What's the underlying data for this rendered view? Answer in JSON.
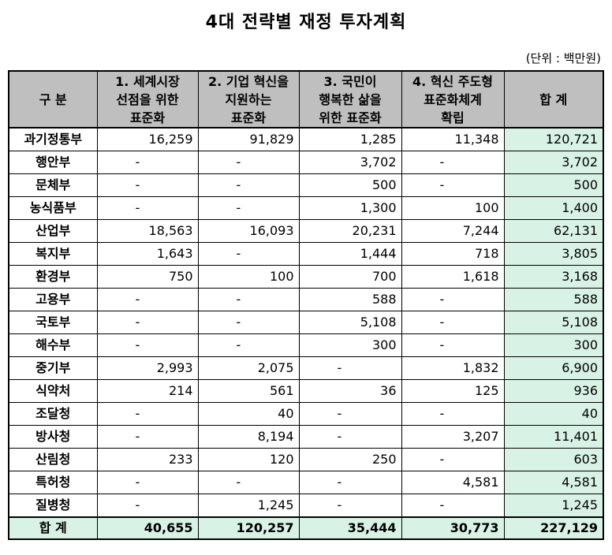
{
  "title": "4대 전략별 재정 투자계획",
  "unit": "(단위 : 백만원)",
  "headers": {
    "category": "구 분",
    "s1": [
      "1. 세계시장",
      "선점을 위한",
      "표준화"
    ],
    "s2": [
      "2. 기업 혁신을",
      "지원하는",
      "표준화"
    ],
    "s3": [
      "3. 국민이",
      "행복한 삶을",
      "위한 표준화"
    ],
    "s4": [
      "4. 혁신 주도형",
      "표준화체계",
      "확립"
    ],
    "total": "합 계"
  },
  "rows": [
    {
      "org": "과기정통부",
      "v": [
        "16,259",
        "91,829",
        "1,285",
        "11,348"
      ],
      "total": "120,721"
    },
    {
      "org": "행안부",
      "v": [
        "-",
        "-",
        "3,702",
        "-"
      ],
      "total": "3,702"
    },
    {
      "org": "문체부",
      "v": [
        "-",
        "-",
        "500",
        "-"
      ],
      "total": "500"
    },
    {
      "org": "농식품부",
      "v": [
        "-",
        "-",
        "1,300",
        "100"
      ],
      "total": "1,400"
    },
    {
      "org": "산업부",
      "v": [
        "18,563",
        "16,093",
        "20,231",
        "7,244"
      ],
      "total": "62,131"
    },
    {
      "org": "복지부",
      "v": [
        "1,643",
        "-",
        "1,444",
        "718"
      ],
      "total": "3,805"
    },
    {
      "org": "환경부",
      "v": [
        "750",
        "100",
        "700",
        "1,618"
      ],
      "total": "3,168"
    },
    {
      "org": "고용부",
      "v": [
        "-",
        "-",
        "588",
        "-"
      ],
      "total": "588"
    },
    {
      "org": "국토부",
      "v": [
        "-",
        "-",
        "5,108",
        "-"
      ],
      "total": "5,108"
    },
    {
      "org": "해수부",
      "v": [
        "-",
        "-",
        "300",
        "-"
      ],
      "total": "300"
    },
    {
      "org": "중기부",
      "v": [
        "2,993",
        "2,075",
        "-",
        "1,832"
      ],
      "total": "6,900"
    },
    {
      "org": "식약처",
      "v": [
        "214",
        "561",
        "36",
        "125"
      ],
      "total": "936"
    },
    {
      "org": "조달청",
      "v": [
        "-",
        "40",
        "-",
        "-"
      ],
      "total": "40"
    },
    {
      "org": "방사청",
      "v": [
        "-",
        "8,194",
        "-",
        "3,207"
      ],
      "total": "11,401"
    },
    {
      "org": "산림청",
      "v": [
        "233",
        "120",
        "250",
        "-"
      ],
      "total": "603"
    },
    {
      "org": "특허청",
      "v": [
        "-",
        "-",
        "-",
        "4,581"
      ],
      "total": "4,581"
    },
    {
      "org": "질병청",
      "v": [
        "-",
        "1,245",
        "-",
        "-"
      ],
      "total": "1,245"
    }
  ],
  "footer": {
    "label": "합 계",
    "v": [
      "40,655",
      "120,257",
      "35,444",
      "30,773"
    ],
    "total": "227,129"
  }
}
